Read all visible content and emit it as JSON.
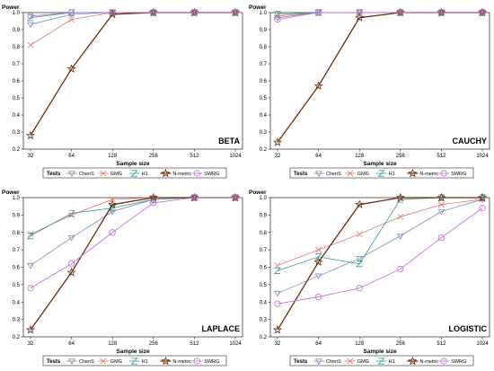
{
  "chart_data": [
    {
      "type": "line",
      "panel_label": "BETA",
      "ylabel": "Power",
      "xlabel": "Sample size",
      "x": [
        "32",
        "64",
        "128",
        "256",
        "512",
        "1024"
      ],
      "ylim": [
        0.2,
        1.0
      ],
      "yticks": [
        "0.2",
        "0.3",
        "0.4",
        "0.5",
        "0.6",
        "0.7",
        "0.8",
        "0.9",
        "1.0"
      ],
      "legend_title": "Tests",
      "series": [
        {
          "name": "ChenS",
          "color": "#7a8fb8",
          "marker": "triangle-down",
          "values": [
            0.93,
            0.99,
            1.0,
            1.0,
            1.0,
            1.0
          ]
        },
        {
          "name": "GMG",
          "color": "#e0796f",
          "marker": "x",
          "values": [
            0.81,
            0.96,
            1.0,
            1.0,
            1.0,
            1.0
          ]
        },
        {
          "name": "H1",
          "color": "#3a9a9a",
          "marker": "z",
          "values": [
            0.97,
            1.0,
            1.0,
            1.0,
            1.0,
            1.0
          ]
        },
        {
          "name": "N-metric",
          "color": "#6b2d0c",
          "marker": "star",
          "values": [
            0.28,
            0.67,
            0.99,
            1.0,
            1.0,
            1.0
          ]
        },
        {
          "name": "SWRG",
          "color": "#c46ad8",
          "marker": "circle",
          "values": [
            0.98,
            1.0,
            1.0,
            1.0,
            1.0,
            1.0
          ]
        }
      ]
    },
    {
      "type": "line",
      "panel_label": "CAUCHY",
      "ylabel": "Power",
      "xlabel": "Sample size",
      "x": [
        "32",
        "64",
        "128",
        "256",
        "512",
        "1024"
      ],
      "ylim": [
        0.2,
        1.0
      ],
      "yticks": [
        "0.2",
        "0.3",
        "0.4",
        "0.5",
        "0.6",
        "0.7",
        "0.8",
        "0.9",
        "1.0"
      ],
      "legend_title": "Tests",
      "series": [
        {
          "name": "ChenS",
          "color": "#7a8fb8",
          "marker": "triangle-down",
          "values": [
            0.97,
            1.0,
            1.0,
            1.0,
            1.0,
            1.0
          ]
        },
        {
          "name": "GMG",
          "color": "#e0796f",
          "marker": "x",
          "values": [
            0.98,
            1.0,
            1.0,
            1.0,
            1.0,
            1.0
          ]
        },
        {
          "name": "H1",
          "color": "#3a9a9a",
          "marker": "z",
          "values": [
            0.99,
            1.0,
            1.0,
            1.0,
            1.0,
            1.0
          ]
        },
        {
          "name": "N-metric",
          "color": "#6b2d0c",
          "marker": "star",
          "values": [
            0.24,
            0.57,
            0.97,
            1.0,
            1.0,
            1.0
          ]
        },
        {
          "name": "SWRG",
          "color": "#c46ad8",
          "marker": "circle",
          "values": [
            0.96,
            1.0,
            1.0,
            1.0,
            1.0,
            1.0
          ]
        }
      ]
    },
    {
      "type": "line",
      "panel_label": "LAPLACE",
      "ylabel": "Power",
      "xlabel": "Sample size",
      "x": [
        "32",
        "64",
        "128",
        "256",
        "512",
        "1024"
      ],
      "ylim": [
        0.2,
        1.0
      ],
      "yticks": [
        "0.2",
        "0.3",
        "0.4",
        "0.5",
        "0.6",
        "0.7",
        "0.8",
        "0.9",
        "1.0"
      ],
      "legend_title": "Tests",
      "series": [
        {
          "name": "ChenS",
          "color": "#7a8fb8",
          "marker": "triangle-down",
          "values": [
            0.61,
            0.77,
            0.92,
            0.99,
            1.0,
            1.0
          ]
        },
        {
          "name": "GMG",
          "color": "#e0796f",
          "marker": "x",
          "values": [
            0.79,
            0.9,
            0.99,
            1.0,
            1.0,
            1.0
          ]
        },
        {
          "name": "H1",
          "color": "#3a9a9a",
          "marker": "z",
          "values": [
            0.78,
            0.91,
            0.94,
            0.99,
            1.0,
            1.0
          ]
        },
        {
          "name": "N-metric",
          "color": "#6b2d0c",
          "marker": "star",
          "values": [
            0.24,
            0.57,
            0.96,
            1.0,
            1.0,
            1.0
          ]
        },
        {
          "name": "SWRG",
          "color": "#c46ad8",
          "marker": "circle",
          "values": [
            0.48,
            0.62,
            0.8,
            0.97,
            1.0,
            1.0
          ]
        }
      ]
    },
    {
      "type": "line",
      "panel_label": "LOGISTIC",
      "ylabel": "Power",
      "xlabel": "Sample size",
      "x": [
        "32",
        "64",
        "128",
        "256",
        "512",
        "1024"
      ],
      "ylim": [
        0.2,
        1.0
      ],
      "yticks": [
        "0.2",
        "0.3",
        "0.4",
        "0.5",
        "0.6",
        "0.7",
        "0.8",
        "0.9",
        "1.0"
      ],
      "legend_title": "Tests",
      "series": [
        {
          "name": "ChenS",
          "color": "#7a8fb8",
          "marker": "triangle-down",
          "values": [
            0.45,
            0.55,
            0.65,
            0.78,
            0.92,
            0.99
          ]
        },
        {
          "name": "GMG",
          "color": "#e0796f",
          "marker": "x",
          "values": [
            0.61,
            0.7,
            0.79,
            0.89,
            0.96,
            0.99
          ]
        },
        {
          "name": "H1",
          "color": "#3a9a9a",
          "marker": "z",
          "values": [
            0.58,
            0.66,
            0.62,
            0.99,
            1.0,
            1.0
          ]
        },
        {
          "name": "N-metric",
          "color": "#6b2d0c",
          "marker": "star",
          "values": [
            0.24,
            0.63,
            0.96,
            1.0,
            1.0,
            1.0
          ]
        },
        {
          "name": "SWRG",
          "color": "#c46ad8",
          "marker": "circle",
          "values": [
            0.39,
            0.43,
            0.48,
            0.59,
            0.77,
            0.94
          ]
        }
      ]
    }
  ]
}
